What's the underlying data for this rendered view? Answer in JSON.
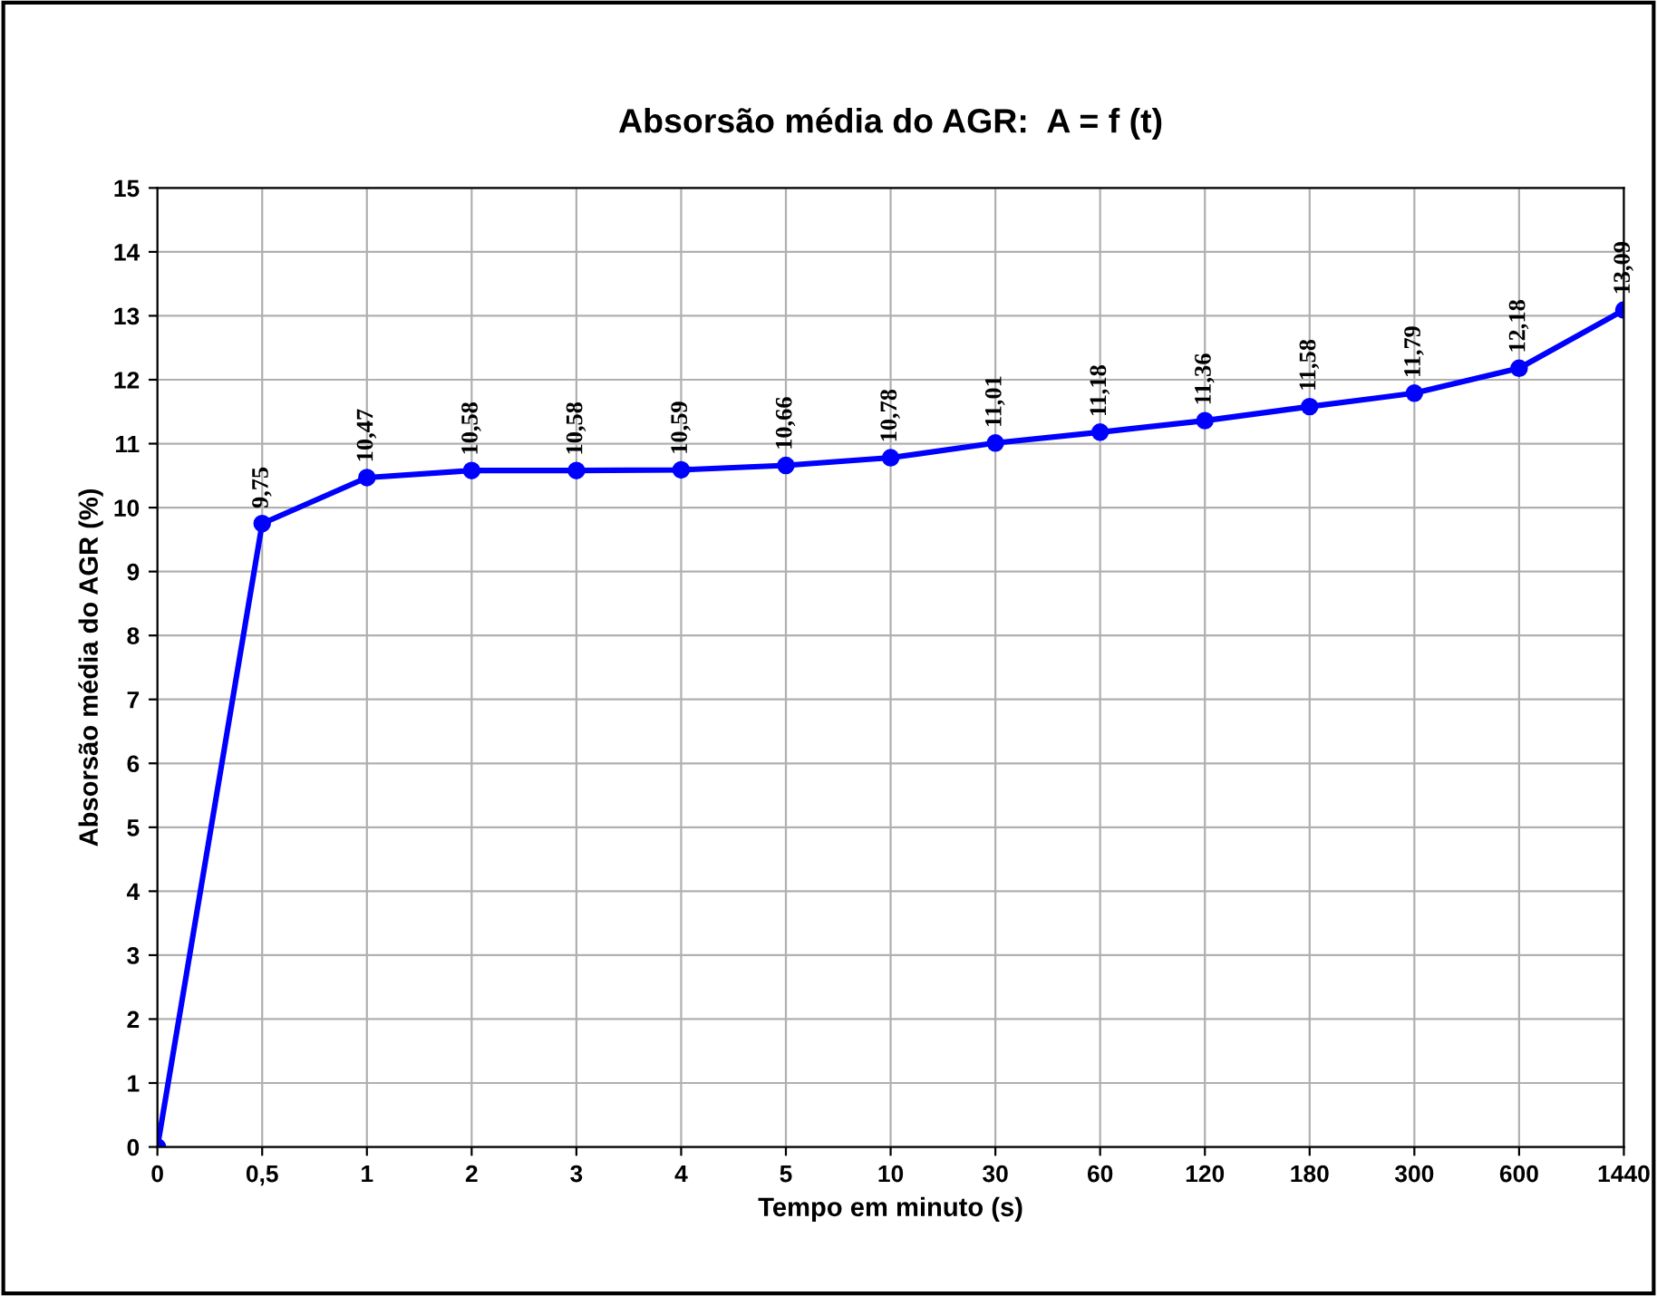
{
  "chart_data": {
    "type": "line",
    "title": "Absorsão média do AGR:  A = f (t)",
    "xlabel": "Tempo em minuto (s)",
    "ylabel": "Absorsão média do AGR (%)",
    "categories": [
      "0",
      "0,5",
      "1",
      "2",
      "3",
      "4",
      "5",
      "10",
      "30",
      "60",
      "120",
      "180",
      "300",
      "600",
      "1440"
    ],
    "series": [
      {
        "color": "#0000ff",
        "values": [
          0,
          9.75,
          10.47,
          10.58,
          10.58,
          10.59,
          10.66,
          10.78,
          11.01,
          11.18,
          11.36,
          11.58,
          11.79,
          12.18,
          13.09
        ],
        "value_labels": [
          null,
          "9,75",
          "10,47",
          "10,58",
          "10,58",
          "10,59",
          "10,66",
          "10,78",
          "11,01",
          "11,18",
          "11,36",
          "11,58",
          "11,79",
          "12,18",
          "13,09"
        ]
      }
    ],
    "ylim": [
      0,
      15
    ],
    "yticks": [
      0,
      1,
      2,
      3,
      4,
      5,
      6,
      7,
      8,
      9,
      10,
      11,
      12,
      13,
      14,
      15
    ],
    "grid": true,
    "marker": "circle",
    "line_style": "solid"
  }
}
